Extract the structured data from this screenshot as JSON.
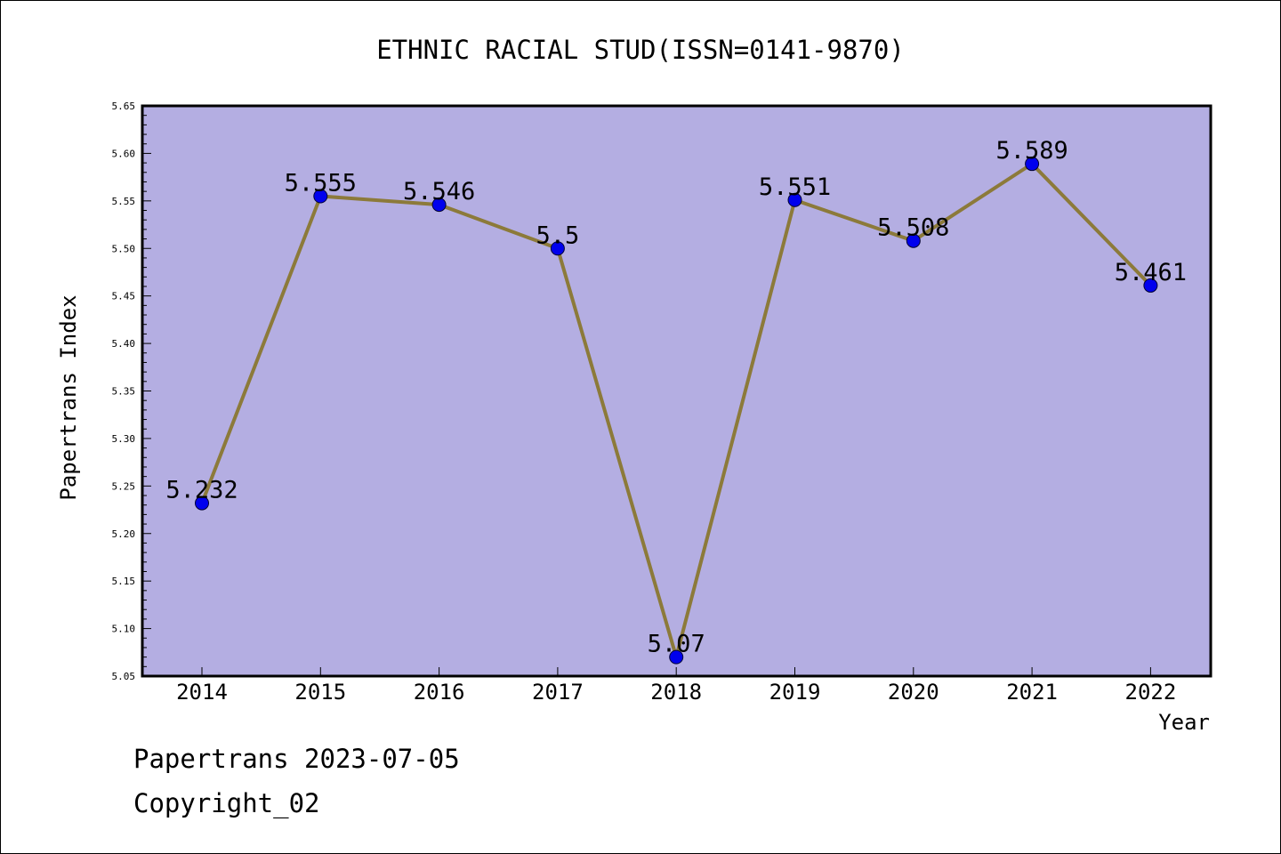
{
  "chart_data": {
    "type": "line",
    "title": "ETHNIC RACIAL STUD(ISSN=0141-9870)",
    "xlabel": "Year",
    "ylabel": "Papertrans Index",
    "categories": [
      "2014",
      "2015",
      "2016",
      "2017",
      "2018",
      "2019",
      "2020",
      "2021",
      "2022"
    ],
    "values": [
      5.232,
      5.555,
      5.546,
      5.5,
      5.07,
      5.551,
      5.508,
      5.589,
      5.461
    ],
    "data_labels": [
      "5.232",
      "5.555",
      "5.546",
      "5.5",
      "5.07",
      "5.551",
      "5.508",
      "5.589",
      "5.461"
    ],
    "ylim": [
      5.05,
      5.65
    ],
    "yticks": [
      "5.05",
      "5.10",
      "5.15",
      "5.20",
      "5.25",
      "5.30",
      "5.35",
      "5.40",
      "5.45",
      "5.50",
      "5.55",
      "5.60",
      "5.65"
    ],
    "grid": false,
    "legend": "none",
    "colors": {
      "plot_background": "#b4aee2",
      "line": "#8c7a3a",
      "marker": "#0000ee",
      "axis": "#000000"
    }
  },
  "footer": {
    "line1": "Papertrans 2023-07-05",
    "line2": "Copyright_02"
  }
}
